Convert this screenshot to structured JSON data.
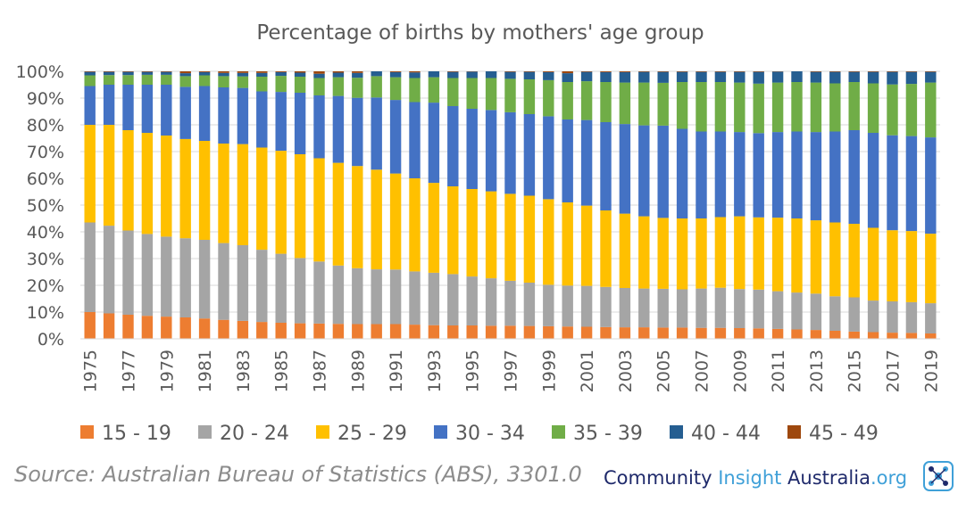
{
  "chart_data": {
    "type": "bar",
    "stacked": true,
    "title": "Percentage of births by mothers' age group",
    "xlabel": "",
    "ylabel": "",
    "ylim": [
      0,
      100
    ],
    "y_ticks": [
      "0%",
      "10%",
      "20%",
      "30%",
      "40%",
      "50%",
      "60%",
      "70%",
      "80%",
      "90%",
      "100%"
    ],
    "grid": true,
    "legend_position": "bottom",
    "categories": [
      "1975",
      "1976",
      "1977",
      "1978",
      "1979",
      "1980",
      "1981",
      "1982",
      "1983",
      "1984",
      "1985",
      "1986",
      "1987",
      "1988",
      "1989",
      "1990",
      "1991",
      "1992",
      "1993",
      "1994",
      "1995",
      "1996",
      "1997",
      "1998",
      "1999",
      "2000",
      "2001",
      "2002",
      "2003",
      "2004",
      "2005",
      "2006",
      "2007",
      "2008",
      "2009",
      "2010",
      "2011",
      "2012",
      "2013",
      "2014",
      "2015",
      "2016",
      "2017",
      "2018",
      "2019"
    ],
    "x_tick_labels": [
      "1975",
      "",
      "1977",
      "",
      "1979",
      "",
      "1981",
      "",
      "1983",
      "",
      "1985",
      "",
      "1987",
      "",
      "1989",
      "",
      "1991",
      "",
      "1993",
      "",
      "1995",
      "",
      "1997",
      "",
      "1999",
      "",
      "2001",
      "",
      "2003",
      "",
      "2005",
      "",
      "2007",
      "",
      "2009",
      "",
      "2011",
      "",
      "2013",
      "",
      "2015",
      "",
      "2017",
      "",
      "2019"
    ],
    "series": [
      {
        "name": "15 - 19",
        "color": "#ED7D31",
        "values": [
          10,
          9.5,
          9,
          8.6,
          8.3,
          8,
          7.6,
          7.1,
          6.7,
          6.3,
          6,
          5.8,
          5.7,
          5.6,
          5.5,
          5.5,
          5.5,
          5.3,
          5.1,
          5,
          5,
          4.9,
          4.9,
          4.8,
          4.7,
          4.6,
          4.5,
          4.4,
          4.3,
          4.3,
          4.2,
          4.2,
          4.1,
          4.1,
          4,
          3.9,
          3.7,
          3.5,
          3.3,
          3,
          2.7,
          2.5,
          2.3,
          2.2,
          2
        ]
      },
      {
        "name": "20 - 24",
        "color": "#A5A5A5",
        "values": [
          33.5,
          32.8,
          31.5,
          30.6,
          29.9,
          29.6,
          29.4,
          28.7,
          28.3,
          27,
          25.8,
          24.4,
          23.2,
          21.8,
          20.9,
          20.5,
          20.4,
          19.9,
          19.6,
          19.2,
          18.3,
          17.8,
          16.8,
          16.2,
          15.5,
          15.3,
          15.3,
          15,
          14.7,
          14.5,
          14.5,
          14.3,
          14.7,
          15,
          14.6,
          14.5,
          14.1,
          13.8,
          13.6,
          12.9,
          12.8,
          11.8,
          11.7,
          11.5,
          11.3
        ]
      },
      {
        "name": "25 - 29",
        "color": "#FFC000",
        "values": [
          36.5,
          37.7,
          37.5,
          37.8,
          37.8,
          37.1,
          37,
          37.2,
          37.8,
          38.2,
          38.5,
          38.8,
          38.6,
          38.4,
          38.2,
          37.3,
          35.9,
          34.8,
          33.6,
          32.8,
          32.7,
          32.6,
          32.5,
          32.5,
          32,
          31.1,
          30,
          28.6,
          27.8,
          27,
          26.5,
          26.5,
          26.2,
          26.4,
          27.2,
          27,
          27.5,
          27.7,
          27.4,
          27.6,
          27.5,
          27.2,
          26.6,
          26.6,
          26
        ]
      },
      {
        "name": "30 - 34",
        "color": "#4472C4",
        "values": [
          14.5,
          15,
          17,
          18,
          19,
          19.5,
          20.5,
          21,
          21,
          21,
          22,
          23,
          23.5,
          25,
          25.5,
          27,
          27.5,
          28.5,
          30,
          30,
          30,
          30.5,
          30.5,
          30.5,
          31,
          31,
          32,
          33,
          33.5,
          34,
          34.5,
          33.5,
          32.5,
          32,
          31.5,
          31.5,
          32,
          32.5,
          33,
          34,
          35,
          35.5,
          35.5,
          35.5,
          36
        ]
      },
      {
        "name": "35 - 39",
        "color": "#70AD47",
        "values": [
          4,
          3.6,
          3.6,
          3.7,
          3.7,
          4,
          4,
          4.2,
          4.3,
          5.5,
          6,
          6,
          6.5,
          7,
          7.5,
          8,
          8.5,
          9,
          9.5,
          10.5,
          11.5,
          12,
          12.5,
          13,
          13.5,
          14,
          14.5,
          15,
          15.5,
          16,
          16,
          17.5,
          18.5,
          18.5,
          18.5,
          18.5,
          18.5,
          18.5,
          18.5,
          18,
          18,
          18.5,
          19,
          19.5,
          20.5
        ]
      },
      {
        "name": "40 - 44",
        "color": "#255E91",
        "values": [
          1.3,
          1.2,
          1.2,
          1.1,
          1.1,
          1.1,
          1.2,
          1.2,
          1.3,
          1.4,
          1.4,
          1.5,
          1.6,
          1.7,
          1.8,
          1.8,
          1.9,
          2.1,
          2.2,
          2.3,
          2.4,
          2.5,
          2.6,
          2.8,
          3,
          3.3,
          3.5,
          3.7,
          3.9,
          4,
          4.1,
          3.8,
          3.8,
          3.8,
          4,
          4.4,
          4.1,
          4,
          4,
          4.3,
          3.8,
          4.3,
          4.7,
          4.5,
          4
        ]
      },
      {
        "name": "45 - 49",
        "color": "#9E480E",
        "values": [
          0.2,
          0.2,
          0.2,
          0.2,
          0.2,
          0.7,
          0.3,
          0.6,
          0.6,
          0.6,
          0.3,
          0.5,
          0.9,
          0.5,
          0.6,
          0,
          0.3,
          0.4,
          0,
          0.2,
          0.1,
          0,
          0.2,
          0.2,
          0.3,
          0.7,
          0.2,
          0.3,
          0.3,
          0.2,
          0.2,
          0.2,
          0.2,
          0.2,
          0.2,
          0.2,
          0.1,
          0,
          0.2,
          0.2,
          0.2,
          0.2,
          0.2,
          0.2,
          0.2
        ]
      }
    ]
  },
  "footer": {
    "source": "Source: Australian Bureau of Statistics (ABS), 3301.0",
    "brand_part1": "Community ",
    "brand_part2": "Insight ",
    "brand_part3": "Australia",
    "brand_part4": ".org",
    "brand_color_dark": "#1F2A6B",
    "brand_color_light": "#3FA0D8",
    "logo_icon": "community-insight-logo-icon"
  }
}
